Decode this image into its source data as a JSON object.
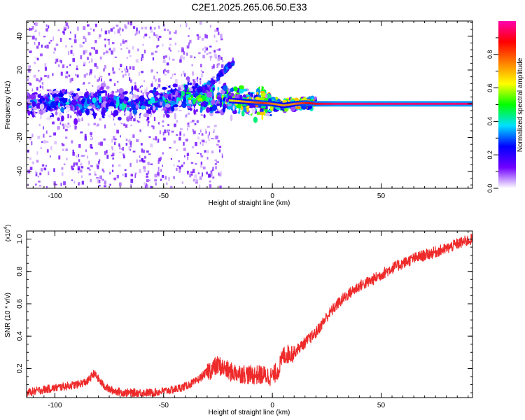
{
  "chart_data": [
    {
      "type": "heatmap",
      "title": "C2E1.2025.265.06.50.E33",
      "xlabel": "Height of straight line (km)",
      "ylabel": "Frequency (Hz)",
      "xlim": [
        -113,
        92
      ],
      "ylim": [
        -50,
        49
      ],
      "x_ticks": [
        -100,
        -50,
        0,
        50
      ],
      "y_ticks": [
        -40,
        -20,
        0,
        20,
        40
      ],
      "colorbar": {
        "label": "Normalized spectral amplitude",
        "range": [
          0,
          1
        ],
        "ticks": [
          "0.0",
          "0.2",
          "0.4",
          "0.6",
          "0.8"
        ],
        "stops": [
          "#ffffff",
          "#7000ff",
          "#0000ff",
          "#00e0ff",
          "#00ff00",
          "#ffff00",
          "#ff8000",
          "#ff0000",
          "#ff00b0"
        ]
      },
      "ridge_line": {
        "height_km": [
          -113,
          -100,
          -90,
          -80,
          -70,
          -60,
          -50,
          -45,
          -40,
          -35,
          -30,
          -25,
          -20,
          -15,
          -10,
          -5,
          0,
          5,
          10,
          15,
          20,
          30,
          40,
          50,
          60,
          70,
          80,
          92
        ],
        "frequency_hz": [
          0,
          1,
          0,
          1,
          0,
          0.5,
          2,
          3,
          5,
          4,
          3,
          2,
          2,
          1.5,
          1,
          0.5,
          0,
          -1,
          0,
          0.5,
          0,
          0,
          0,
          0,
          0,
          0,
          0,
          0
        ],
        "amplitude": [
          0.35,
          0.4,
          0.45,
          0.4,
          0.45,
          0.4,
          0.45,
          0.5,
          0.55,
          0.55,
          0.6,
          0.6,
          0.6,
          0.7,
          0.75,
          0.85,
          0.75,
          0.7,
          0.75,
          0.85,
          0.9,
          0.95,
          0.95,
          0.95,
          0.95,
          0.95,
          0.95,
          0.95
        ]
      },
      "secondary_trace": {
        "height_km": [
          -35,
          -30,
          -27,
          -24,
          -21,
          -18
        ],
        "frequency_hz": [
          7,
          10,
          13,
          17,
          21,
          25
        ]
      }
    },
    {
      "type": "line",
      "xlabel": "Height of straight line (km)",
      "ylabel": "SNR (10 * v/v)",
      "y_multiplier": "(x10",
      "y_multiplier_exp": "4",
      "xlim": [
        -113,
        92
      ],
      "ylim": [
        0.02,
        1.05
      ],
      "x_ticks": [
        -100,
        -50,
        0,
        50
      ],
      "y_ticks": [
        0.2,
        0.4,
        0.6,
        0.8,
        1.0
      ],
      "series": [
        {
          "name": "SNR",
          "color": "#ee2a2a",
          "x": [
            -113,
            -105,
            -100,
            -95,
            -90,
            -85,
            -82,
            -78,
            -75,
            -72,
            -68,
            -65,
            -60,
            -55,
            -50,
            -45,
            -40,
            -35,
            -30,
            -25,
            -22,
            -20,
            -15,
            -10,
            -5,
            0,
            3,
            5,
            10,
            15,
            20,
            25,
            30,
            35,
            40,
            45,
            50,
            55,
            60,
            65,
            70,
            75,
            80,
            85,
            92
          ],
          "y": [
            0.05,
            0.07,
            0.08,
            0.09,
            0.1,
            0.12,
            0.17,
            0.1,
            0.07,
            0.06,
            0.05,
            0.05,
            0.05,
            0.05,
            0.06,
            0.07,
            0.09,
            0.12,
            0.18,
            0.22,
            0.2,
            0.18,
            0.17,
            0.16,
            0.16,
            0.15,
            0.2,
            0.28,
            0.3,
            0.36,
            0.42,
            0.52,
            0.6,
            0.66,
            0.71,
            0.74,
            0.78,
            0.82,
            0.85,
            0.88,
            0.9,
            0.92,
            0.94,
            0.97,
            1.0
          ]
        }
      ]
    }
  ]
}
